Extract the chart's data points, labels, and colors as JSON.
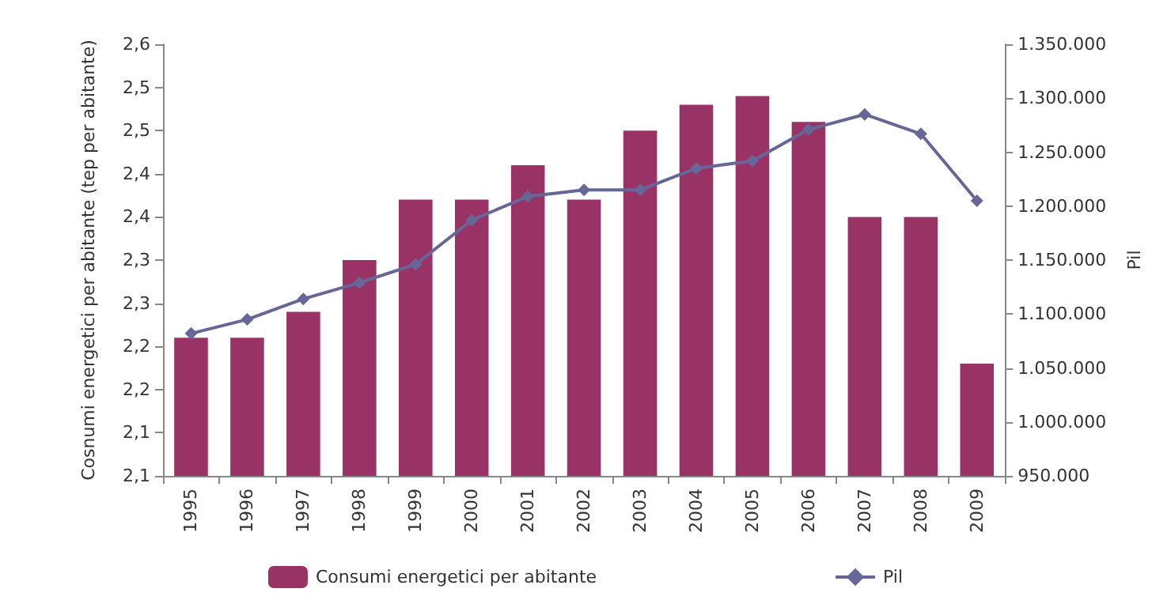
{
  "chart_data": {
    "type": "bar",
    "ylabel": "Cosnumi energetici per abitante (tep per abitante)",
    "y2label": "Pil",
    "categories": [
      "1995",
      "1996",
      "1997",
      "1998",
      "1999",
      "2000",
      "2001",
      "2002",
      "2003",
      "2004",
      "2005",
      "2006",
      "2007",
      "2008",
      "2009"
    ],
    "series": [
      {
        "name": "Consumi energetici per abitante",
        "color": "#993366",
        "values": [
          2.26,
          2.26,
          2.29,
          2.35,
          2.42,
          2.42,
          2.46,
          2.42,
          2.5,
          2.53,
          2.54,
          2.51,
          2.4,
          2.4,
          2.23
        ]
      },
      {
        "name": "Pil",
        "type": "line",
        "axis": "y2",
        "color": "#666699",
        "marker": "diamond",
        "values": [
          1082000,
          1095000,
          1114000,
          1129000,
          1146000,
          1187000,
          1209000,
          1215000,
          1215000,
          1235000,
          1242000,
          1271000,
          1285000,
          1267000,
          1205000
        ]
      }
    ],
    "ylim": [
      2.1,
      2.6
    ],
    "yticks": [
      {
        "value": 2.1,
        "label": "2,1"
      },
      {
        "value": 2.15,
        "label": "2,1"
      },
      {
        "value": 2.2,
        "label": "2,2"
      },
      {
        "value": 2.25,
        "label": "2,2"
      },
      {
        "value": 2.3,
        "label": "2,3"
      },
      {
        "value": 2.35,
        "label": "2,3"
      },
      {
        "value": 2.4,
        "label": "2,4"
      },
      {
        "value": 2.45,
        "label": "2,4"
      },
      {
        "value": 2.5,
        "label": "2,5"
      },
      {
        "value": 2.55,
        "label": "2,5"
      },
      {
        "value": 2.6,
        "label": "2,6"
      }
    ],
    "y2lim": [
      950000,
      1350000
    ],
    "y2ticks": [
      {
        "value": 950000,
        "label": "950.000"
      },
      {
        "value": 1000000,
        "label": "1.000.000"
      },
      {
        "value": 1050000,
        "label": "1.050.000"
      },
      {
        "value": 1100000,
        "label": "1.100.000"
      },
      {
        "value": 1150000,
        "label": "1.150.000"
      },
      {
        "value": 1200000,
        "label": "1.200.000"
      },
      {
        "value": 1250000,
        "label": "1.250.000"
      },
      {
        "value": 1300000,
        "label": "1.300.000"
      },
      {
        "value": 1350000,
        "label": "1.350.000"
      }
    ],
    "legend": "bottom"
  }
}
